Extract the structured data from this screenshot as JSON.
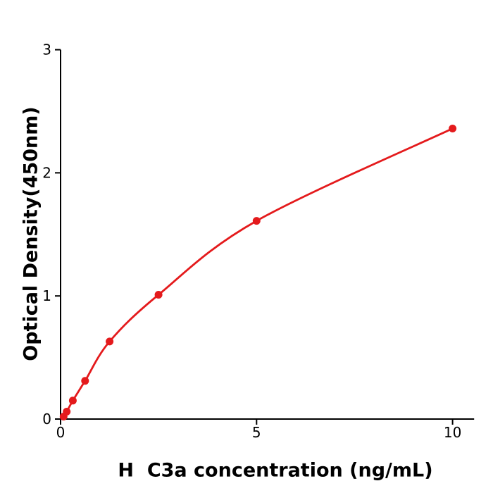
{
  "chart_data": {
    "type": "scatter",
    "title": "",
    "xlabel": "H  C3a concentration (ng/mL)",
    "ylabel": "Optical Density(450nm)",
    "x": [
      0.078,
      0.156,
      0.3125,
      0.625,
      1.25,
      2.5,
      5,
      10
    ],
    "y": [
      0.02,
      0.06,
      0.15,
      0.31,
      0.63,
      1.01,
      1.61,
      2.36
    ],
    "xticks": [
      0,
      5,
      10
    ],
    "yticks": [
      0,
      1,
      2,
      3
    ],
    "xlim": [
      0,
      10.55
    ],
    "ylim": [
      0,
      3
    ],
    "grid": false,
    "legend": false,
    "line_style": "smooth-curve-through-points",
    "colors": {
      "line": "#e41a1c",
      "marker": "#e41a1c",
      "axis": "#000000",
      "text": "#000000",
      "background": "#ffffff"
    }
  }
}
